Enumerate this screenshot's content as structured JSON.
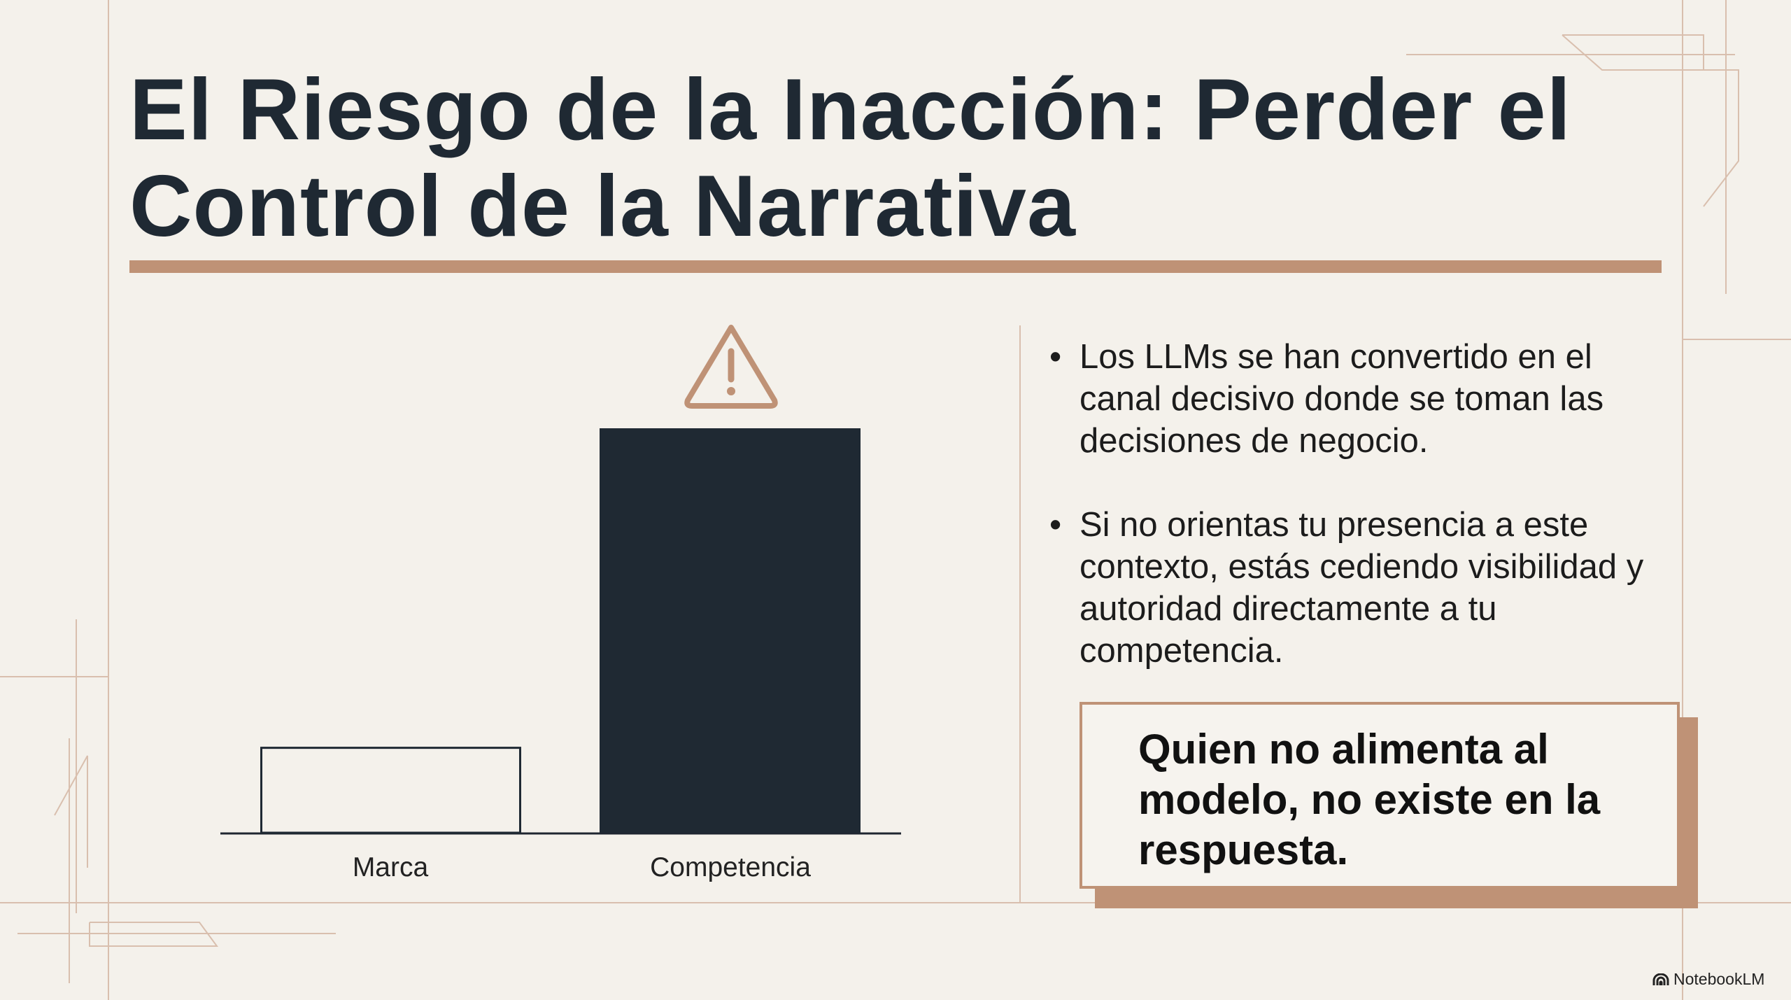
{
  "title": "El Riesgo de la Inacción: Perder el Control de la Narrativa",
  "colors": {
    "accent": "#bf9276",
    "dark": "#1f2933",
    "background": "#f4f1eb"
  },
  "chart_data": {
    "type": "bar",
    "categories": [
      "Marca",
      "Competencia"
    ],
    "values": [
      21,
      100
    ],
    "bar_styles": [
      "outline",
      "filled"
    ],
    "annotation_icon": "warning-triangle-icon",
    "axes": "baseline only, no ticks",
    "grid": false
  },
  "bullets": [
    {
      "text": "Los LLMs se han convertido en el canal decisivo donde se toman las decisiones de negocio."
    },
    {
      "text": " Si no orientas tu presencia a este contexto, estás cediendo visibilidad y autoridad directamente a tu competencia."
    }
  ],
  "bullet_glyph": "•",
  "quote": "Quien no alimenta al modelo, no existe en la respuesta.",
  "brand": {
    "label": "NotebookLM",
    "icon": "notebooklm-logo-icon"
  }
}
